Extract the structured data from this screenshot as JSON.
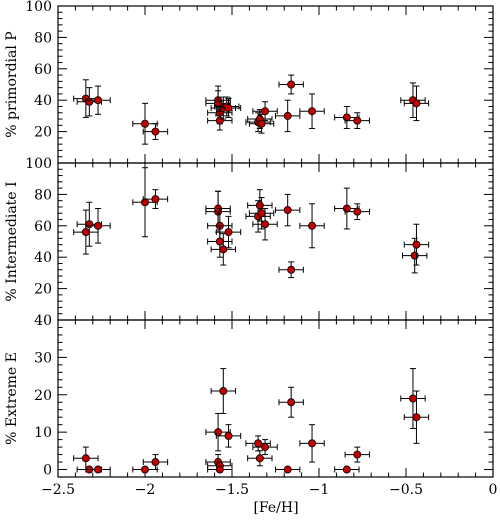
{
  "chart_data": [
    {
      "type": "scatter",
      "panel": "top",
      "ylabel": "% primordial P",
      "xlim": [
        -2.5,
        0
      ],
      "ylim": [
        0,
        100
      ],
      "x_ticks": [
        -2.5,
        -2,
        -1.5,
        -1,
        -0.5,
        0
      ],
      "y_ticks": [
        0,
        20,
        40,
        60,
        80,
        100
      ],
      "y_tick_labels": [
        "",
        "20",
        "40",
        "60",
        "80",
        "100"
      ],
      "marker_color": "#c00000",
      "points": [
        {
          "x": -2.34,
          "y": 41,
          "xerr": 0.07,
          "yerr": 12
        },
        {
          "x": -2.32,
          "y": 39,
          "xerr": 0.07,
          "yerr": 9
        },
        {
          "x": -2.27,
          "y": 40,
          "xerr": 0.07,
          "yerr": 9
        },
        {
          "x": -2.0,
          "y": 25,
          "xerr": 0.07,
          "yerr": 13
        },
        {
          "x": -1.94,
          "y": 20,
          "xerr": 0.07,
          "yerr": 5
        },
        {
          "x": -1.58,
          "y": 40,
          "xerr": 0.07,
          "yerr": 9
        },
        {
          "x": -1.58,
          "y": 38,
          "xerr": 0.07,
          "yerr": 8
        },
        {
          "x": -1.57,
          "y": 32,
          "xerr": 0.07,
          "yerr": 7
        },
        {
          "x": -1.57,
          "y": 27,
          "xerr": 0.07,
          "yerr": 6
        },
        {
          "x": -1.55,
          "y": 35,
          "xerr": 0.07,
          "yerr": 7
        },
        {
          "x": -1.53,
          "y": 36,
          "xerr": 0.07,
          "yerr": 6
        },
        {
          "x": -1.52,
          "y": 35,
          "xerr": 0.07,
          "yerr": 6
        },
        {
          "x": -1.35,
          "y": 26,
          "xerr": 0.07,
          "yerr": 6
        },
        {
          "x": -1.34,
          "y": 28,
          "xerr": 0.07,
          "yerr": 6
        },
        {
          "x": -1.33,
          "y": 25,
          "xerr": 0.07,
          "yerr": 6
        },
        {
          "x": -1.31,
          "y": 33,
          "xerr": 0.07,
          "yerr": 6
        },
        {
          "x": -1.18,
          "y": 30,
          "xerr": 0.07,
          "yerr": 10
        },
        {
          "x": -1.16,
          "y": 50,
          "xerr": 0.07,
          "yerr": 6
        },
        {
          "x": -1.04,
          "y": 33,
          "xerr": 0.07,
          "yerr": 11
        },
        {
          "x": -0.84,
          "y": 29,
          "xerr": 0.07,
          "yerr": 7
        },
        {
          "x": -0.78,
          "y": 27,
          "xerr": 0.07,
          "yerr": 5
        },
        {
          "x": -0.46,
          "y": 40,
          "xerr": 0.07,
          "yerr": 11
        },
        {
          "x": -0.44,
          "y": 38,
          "xerr": 0.07,
          "yerr": 11
        }
      ]
    },
    {
      "type": "scatter",
      "panel": "middle",
      "ylabel": "% Intermediate I",
      "xlim": [
        -2.5,
        0
      ],
      "ylim": [
        0,
        100
      ],
      "x_ticks": [
        -2.5,
        -2,
        -1.5,
        -1,
        -0.5,
        0
      ],
      "y_ticks": [
        0,
        20,
        40,
        60,
        80,
        100
      ],
      "y_tick_labels": [
        "",
        "20",
        "40",
        "60",
        "80",
        "100"
      ],
      "marker_color": "#c00000",
      "points": [
        {
          "x": -2.34,
          "y": 56,
          "xerr": 0.07,
          "yerr": 14
        },
        {
          "x": -2.32,
          "y": 61,
          "xerr": 0.07,
          "yerr": 14
        },
        {
          "x": -2.27,
          "y": 60,
          "xerr": 0.07,
          "yerr": 11
        },
        {
          "x": -2.0,
          "y": 75,
          "xerr": 0.07,
          "yerr": 22
        },
        {
          "x": -1.94,
          "y": 77,
          "xerr": 0.07,
          "yerr": 6
        },
        {
          "x": -1.58,
          "y": 69,
          "xerr": 0.07,
          "yerr": 13
        },
        {
          "x": -1.58,
          "y": 71,
          "xerr": 0.07,
          "yerr": 11
        },
        {
          "x": -1.57,
          "y": 60,
          "xerr": 0.07,
          "yerr": 11
        },
        {
          "x": -1.57,
          "y": 50,
          "xerr": 0.07,
          "yerr": 10
        },
        {
          "x": -1.55,
          "y": 45,
          "xerr": 0.07,
          "yerr": 10
        },
        {
          "x": -1.52,
          "y": 56,
          "xerr": 0.07,
          "yerr": 10
        },
        {
          "x": -1.35,
          "y": 66,
          "xerr": 0.07,
          "yerr": 10
        },
        {
          "x": -1.34,
          "y": 73,
          "xerr": 0.07,
          "yerr": 10
        },
        {
          "x": -1.33,
          "y": 68,
          "xerr": 0.07,
          "yerr": 10
        },
        {
          "x": -1.31,
          "y": 61,
          "xerr": 0.07,
          "yerr": 10
        },
        {
          "x": -1.18,
          "y": 70,
          "xerr": 0.07,
          "yerr": 10
        },
        {
          "x": -1.16,
          "y": 32,
          "xerr": 0.07,
          "yerr": 5
        },
        {
          "x": -1.04,
          "y": 60,
          "xerr": 0.07,
          "yerr": 14
        },
        {
          "x": -0.84,
          "y": 71,
          "xerr": 0.07,
          "yerr": 13
        },
        {
          "x": -0.78,
          "y": 69,
          "xerr": 0.07,
          "yerr": 5
        },
        {
          "x": -0.45,
          "y": 41,
          "xerr": 0.07,
          "yerr": 11
        },
        {
          "x": -0.44,
          "y": 48,
          "xerr": 0.07,
          "yerr": 13
        }
      ]
    },
    {
      "type": "scatter",
      "panel": "bottom",
      "ylabel": "% Extreme E",
      "xlabel": "[Fe/H]",
      "xlim": [
        -2.5,
        0
      ],
      "ylim": [
        -2,
        40
      ],
      "x_ticks": [
        -2.5,
        -2,
        -1.5,
        -1,
        -0.5,
        0
      ],
      "x_tick_labels": [
        "−2.5",
        "−2",
        "−1.5",
        "−1",
        "−0.5",
        "0"
      ],
      "y_ticks": [
        0,
        10,
        20,
        30,
        40
      ],
      "y_tick_labels": [
        "0",
        "10",
        "20",
        "30",
        "40"
      ],
      "marker_color": "#c00000",
      "points": [
        {
          "x": -2.34,
          "y": 3,
          "xerr": 0.07,
          "yerr": 3
        },
        {
          "x": -2.32,
          "y": 0,
          "xerr": 0.07,
          "yerr": 0
        },
        {
          "x": -2.27,
          "y": 0,
          "xerr": 0.07,
          "yerr": 0
        },
        {
          "x": -2.0,
          "y": 0,
          "xerr": 0.07,
          "yerr": 0
        },
        {
          "x": -1.94,
          "y": 2,
          "xerr": 0.07,
          "yerr": 2
        },
        {
          "x": -1.58,
          "y": 10,
          "xerr": 0.07,
          "yerr": 5
        },
        {
          "x": -1.58,
          "y": 2,
          "xerr": 0.07,
          "yerr": 2
        },
        {
          "x": -1.57,
          "y": 1,
          "xerr": 0.07,
          "yerr": 1
        },
        {
          "x": -1.57,
          "y": 0,
          "xerr": 0.07,
          "yerr": 0
        },
        {
          "x": -1.55,
          "y": 21,
          "xerr": 0.07,
          "yerr": 6
        },
        {
          "x": -1.52,
          "y": 9,
          "xerr": 0.07,
          "yerr": 3
        },
        {
          "x": -1.35,
          "y": 7,
          "xerr": 0.07,
          "yerr": 2
        },
        {
          "x": -1.34,
          "y": 3,
          "xerr": 0.07,
          "yerr": 2
        },
        {
          "x": -1.31,
          "y": 6,
          "xerr": 0.07,
          "yerr": 2
        },
        {
          "x": -1.18,
          "y": 0,
          "xerr": 0.07,
          "yerr": 0
        },
        {
          "x": -1.16,
          "y": 18,
          "xerr": 0.07,
          "yerr": 4
        },
        {
          "x": -1.04,
          "y": 7,
          "xerr": 0.07,
          "yerr": 5
        },
        {
          "x": -0.84,
          "y": 0,
          "xerr": 0.07,
          "yerr": 0
        },
        {
          "x": -0.78,
          "y": 4,
          "xerr": 0.07,
          "yerr": 2
        },
        {
          "x": -0.46,
          "y": 19,
          "xerr": 0.07,
          "yerr": 8
        },
        {
          "x": -0.44,
          "y": 14,
          "xerr": 0.07,
          "yerr": 7
        }
      ]
    }
  ]
}
